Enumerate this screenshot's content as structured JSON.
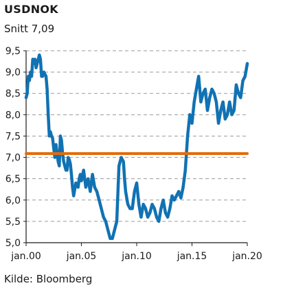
{
  "chart_data": {
    "type": "line",
    "title": "USDNOK",
    "subtitle": "Snitt 7,09",
    "source": "Kilde: Bloomberg",
    "xlabel": "",
    "ylabel": "",
    "x_tick_labels": [
      "jan.00",
      "jan.05",
      "jan.10",
      "jan.15",
      "jan.20"
    ],
    "x_tick_years": [
      2000,
      2005,
      2010,
      2015,
      2020
    ],
    "xlim": [
      2000,
      2020
    ],
    "ylim": [
      5.0,
      9.5
    ],
    "y_ticks": [
      5.0,
      5.5,
      6.0,
      6.5,
      7.0,
      7.5,
      8.0,
      8.5,
      9.0,
      9.5
    ],
    "y_tick_labels": [
      "5,0",
      "5,5",
      "6,0",
      "6,5",
      "7,0",
      "7,5",
      "8,0",
      "8,5",
      "9,0",
      "9,5"
    ],
    "grid": "horizontal dashed",
    "series": [
      {
        "color": "#1172b3",
        "x": [
          2000.0,
          2000.1,
          2000.2,
          2000.3,
          2000.4,
          2000.5,
          2000.6,
          2000.7,
          2000.8,
          2000.9,
          2001.0,
          2001.1,
          2001.2,
          2001.3,
          2001.4,
          2001.5,
          2001.6,
          2001.7,
          2001.8,
          2001.9,
          2002.0,
          2002.1,
          2002.2,
          2002.3,
          2002.4,
          2002.5,
          2002.6,
          2002.7,
          2002.8,
          2002.9,
          2003.0,
          2003.1,
          2003.2,
          2003.3,
          2003.4,
          2003.5,
          2003.6,
          2003.7,
          2003.8,
          2003.9,
          2004.0,
          2004.1,
          2004.2,
          2004.3,
          2004.4,
          2004.5,
          2004.6,
          2004.7,
          2004.8,
          2004.9,
          2005.0,
          2005.2,
          2005.4,
          2005.6,
          2005.8,
          2006.0,
          2006.2,
          2006.4,
          2006.6,
          2006.8,
          2007.0,
          2007.2,
          2007.4,
          2007.6,
          2007.8,
          2008.0,
          2008.2,
          2008.4,
          2008.6,
          2008.8,
          2008.9,
          2009.0,
          2009.2,
          2009.4,
          2009.6,
          2009.8,
          2010.0,
          2010.2,
          2010.4,
          2010.6,
          2010.8,
          2011.0,
          2011.2,
          2011.4,
          2011.6,
          2011.8,
          2012.0,
          2012.2,
          2012.4,
          2012.6,
          2012.8,
          2013.0,
          2013.2,
          2013.4,
          2013.6,
          2013.8,
          2014.0,
          2014.2,
          2014.4,
          2014.6,
          2014.8,
          2015.0,
          2015.2,
          2015.4,
          2015.6,
          2015.8,
          2016.0,
          2016.2,
          2016.4,
          2016.6,
          2016.8,
          2017.0,
          2017.2,
          2017.4,
          2017.6,
          2017.8,
          2018.0,
          2018.2,
          2018.4,
          2018.6,
          2018.8,
          2019.0,
          2019.2,
          2019.4,
          2019.6,
          2019.8,
          2020.0
        ],
        "y": [
          8.4,
          8.5,
          8.9,
          8.8,
          9.0,
          8.9,
          9.3,
          9.2,
          9.3,
          9.1,
          9.2,
          9.3,
          9.4,
          9.3,
          8.9,
          8.9,
          9.0,
          8.95,
          8.9,
          8.6,
          8.0,
          7.5,
          7.6,
          7.5,
          7.45,
          7.2,
          7.0,
          7.3,
          7.1,
          6.9,
          6.8,
          7.5,
          7.4,
          7.1,
          6.9,
          6.8,
          6.7,
          6.7,
          7.0,
          6.95,
          6.85,
          6.6,
          6.3,
          6.1,
          6.25,
          6.4,
          6.35,
          6.3,
          6.5,
          6.6,
          6.45,
          6.7,
          6.3,
          6.5,
          6.2,
          6.6,
          6.3,
          6.2,
          6.0,
          5.8,
          5.6,
          5.5,
          5.3,
          5.1,
          5.1,
          5.3,
          5.5,
          6.8,
          7.0,
          6.9,
          6.5,
          6.2,
          5.9,
          5.8,
          5.8,
          6.2,
          6.4,
          5.9,
          5.6,
          5.9,
          5.8,
          5.6,
          5.7,
          5.9,
          5.8,
          5.6,
          5.5,
          5.8,
          6.0,
          5.7,
          5.6,
          5.8,
          6.1,
          6.0,
          6.1,
          6.2,
          6.05,
          6.3,
          6.7,
          7.5,
          8.0,
          7.8,
          8.3,
          8.6,
          8.9,
          8.3,
          8.5,
          8.6,
          8.1,
          8.4,
          8.6,
          8.5,
          8.3,
          7.8,
          8.1,
          8.3,
          7.9,
          8.0,
          8.3,
          8.0,
          8.1,
          8.7,
          8.5,
          8.4,
          8.8,
          8.9,
          9.2
        ]
      },
      {
        "name": "",
        "color": "#e36c0a",
        "x": [
          2000,
          2020
        ],
        "y": [
          7.09,
          7.09
        ]
      }
    ]
  }
}
